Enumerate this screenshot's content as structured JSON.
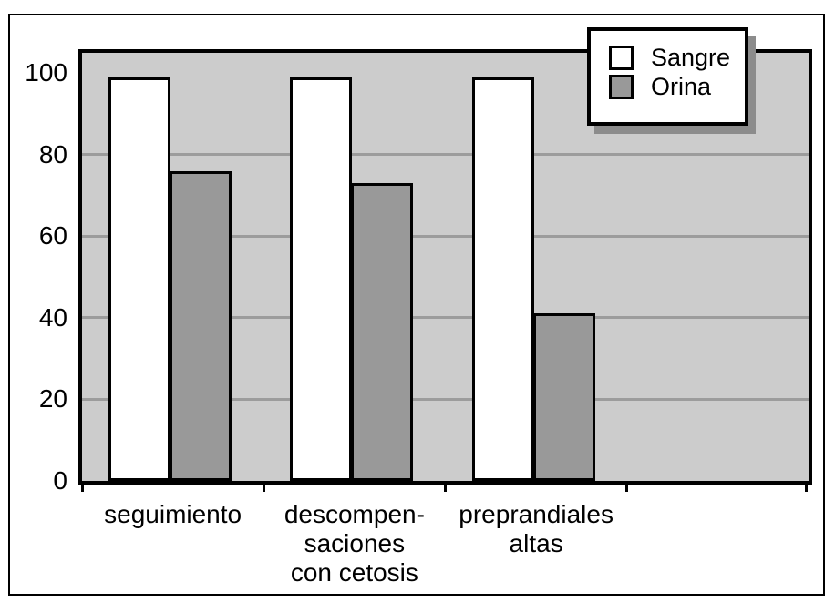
{
  "figure": {
    "background_color": "#ffffff",
    "frame_border_color": "#000000"
  },
  "chart_data": {
    "type": "bar",
    "title": "",
    "xlabel": "",
    "ylabel": "",
    "categories": [
      "seguimiento",
      "descompensaciones con cetosis",
      "preprandiales altas"
    ],
    "category_label_lines": [
      [
        "seguimiento"
      ],
      [
        "descompen-",
        "saciones",
        "con cetosis"
      ],
      [
        "preprandiales",
        "altas"
      ]
    ],
    "series": [
      {
        "name": "Sangre",
        "color": "#ffffff",
        "values": [
          99,
          99,
          99
        ]
      },
      {
        "name": "Orina",
        "color": "#999999",
        "values": [
          76,
          73,
          41
        ]
      }
    ],
    "ylim": [
      0,
      105
    ],
    "yticks": [
      0,
      20,
      40,
      60,
      80,
      100
    ],
    "gridline_values": [
      20,
      40,
      60,
      80
    ],
    "grid": true,
    "extra_empty_slots": 1,
    "plot_background_color": "#cccccc",
    "gridline_color": "#9c9c9c",
    "bar_border_color": "#000000",
    "legend_position": "top-right",
    "legend_shadow_color": "#8c8c8c"
  }
}
